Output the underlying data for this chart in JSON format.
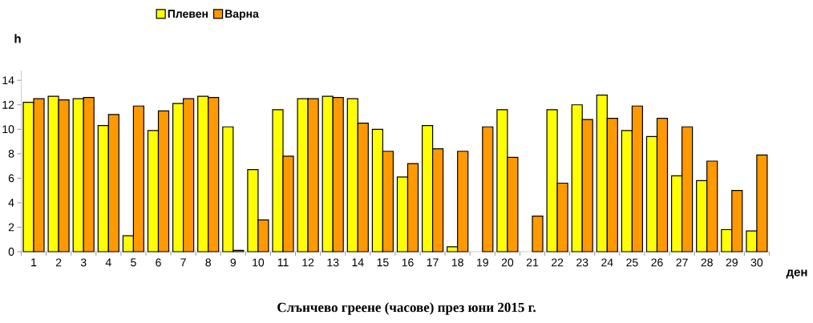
{
  "chart_data": {
    "type": "bar",
    "title": "Слънчево греене (часове) през юни 2015 г.",
    "xlabel": "ден",
    "ylabel": "h",
    "categories": [
      "1",
      "2",
      "3",
      "4",
      "5",
      "6",
      "7",
      "8",
      "9",
      "10",
      "11",
      "12",
      "13",
      "14",
      "15",
      "16",
      "17",
      "18",
      "19",
      "20",
      "21",
      "22",
      "23",
      "24",
      "25",
      "26",
      "27",
      "28",
      "29",
      "30"
    ],
    "series": [
      {
        "name": "Плевен",
        "color": "#ffff00",
        "values": [
          12.2,
          12.7,
          12.5,
          10.3,
          1.3,
          9.9,
          12.1,
          12.7,
          10.2,
          6.7,
          11.6,
          12.5,
          12.7,
          12.5,
          10.0,
          6.1,
          10.3,
          0.4,
          null,
          11.6,
          null,
          11.6,
          12.0,
          12.8,
          9.9,
          9.4,
          6.2,
          5.8,
          1.8,
          1.7
        ]
      },
      {
        "name": "Варна",
        "color": "#ff9900",
        "values": [
          12.5,
          12.4,
          12.6,
          11.2,
          11.9,
          11.5,
          12.5,
          12.6,
          0.1,
          2.6,
          7.8,
          12.5,
          12.6,
          10.5,
          8.2,
          7.2,
          8.4,
          8.2,
          10.2,
          7.7,
          2.9,
          5.6,
          10.8,
          10.9,
          11.9,
          10.9,
          10.2,
          7.4,
          5.0,
          7.9
        ]
      }
    ],
    "ylim": [
      0,
      14.8
    ],
    "yticks": [
      0,
      2,
      4,
      6,
      8,
      10,
      12,
      14
    ],
    "legend": "top"
  }
}
